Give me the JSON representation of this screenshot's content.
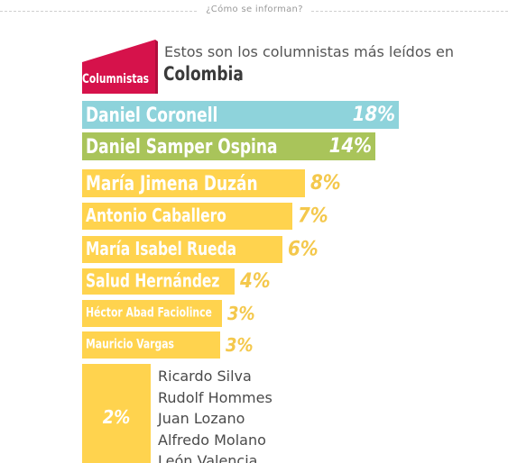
{
  "header": {
    "caption": "¿Cómo se informan?"
  },
  "badge": {
    "label": "Columnistas",
    "color": "#d6124b"
  },
  "intro": {
    "line1": "Estos son los columnistas más leídos en",
    "country": "Colombia",
    "colon": ":"
  },
  "chart_data": {
    "type": "bar",
    "orientation": "horizontal",
    "unit": "%",
    "categories": [
      "Daniel Coronell",
      "Daniel Samper Ospina",
      "María Jimena Duzán",
      "Antonio Caballero",
      "María Isabel Rueda",
      "Salud Hernández",
      "Héctor Abad Faciolince",
      "Mauricio Vargas"
    ],
    "values": [
      18,
      14,
      8,
      7,
      6,
      4,
      3,
      3
    ],
    "value_labels": [
      "18%",
      "14%",
      "8%",
      "7%",
      "6%",
      "4%",
      "3%",
      "3%"
    ],
    "colors": [
      "#8ed3db",
      "#a9c45a",
      "#ffd34e",
      "#ffd34e",
      "#ffd34e",
      "#ffd34e",
      "#ffd34e",
      "#ffd34e"
    ],
    "value_label_color": "#f4c84c",
    "grouped": {
      "value": 2,
      "value_label": "2%",
      "names": [
        "Ricardo Silva",
        "Rudolf Hommes",
        "Juan Lozano",
        "Alfredo Molano",
        "León Valencia"
      ]
    }
  }
}
